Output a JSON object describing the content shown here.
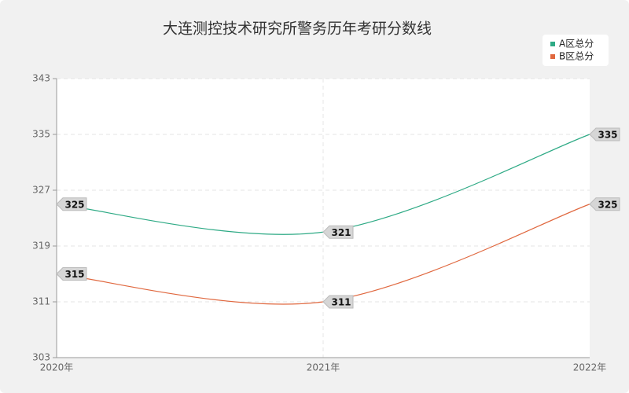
{
  "chart_data": {
    "type": "line",
    "title": "大连测控技术研究所警务历年考研分数线",
    "categories": [
      "2020年",
      "2021年",
      "2022年"
    ],
    "series": [
      {
        "name": "A区总分",
        "color": "#2eaa85",
        "values": [
          325,
          321,
          335
        ]
      },
      {
        "name": "B区总分",
        "color": "#e0683f",
        "values": [
          315,
          311,
          325
        ]
      }
    ],
    "ylim": [
      303,
      343
    ],
    "yticks": [
      303,
      311,
      319,
      327,
      335,
      343
    ],
    "grid": true,
    "smooth": true,
    "legend": "top-right"
  }
}
